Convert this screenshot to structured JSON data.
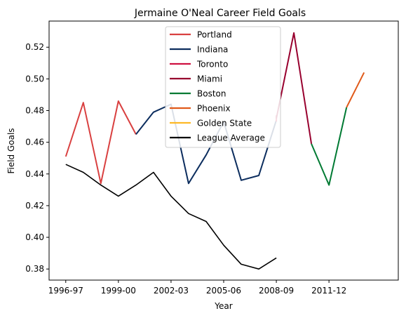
{
  "chart_data": {
    "type": "line",
    "title": "Jermaine O'Neal Career Field Goals",
    "xlabel": "Year",
    "ylabel": "Field Goals",
    "x_ticks": [
      "1996-97",
      "1999-00",
      "2002-03",
      "2005-06",
      "2008-09",
      "2011-12"
    ],
    "xlim": [
      -0.95,
      18.95
    ],
    "ylim": [
      0.373,
      0.5365
    ],
    "y_ticks": [
      0.38,
      0.4,
      0.42,
      0.44,
      0.46,
      0.48,
      0.5,
      0.52
    ],
    "grid": false,
    "legend_position": "top-center",
    "series": [
      {
        "name": "Portland",
        "color": "#d94040",
        "points": [
          [
            "1996-97",
            0.451
          ],
          [
            "1997-98",
            0.485
          ],
          [
            "1998-99",
            0.434
          ],
          [
            "1999-00",
            0.486
          ],
          [
            "2000-01",
            0.465
          ]
        ]
      },
      {
        "name": "Indiana",
        "color": "#0c2d5e",
        "points": [
          [
            "2000-01",
            0.465
          ],
          [
            "2001-02",
            0.479
          ],
          [
            "2002-03",
            0.484
          ],
          [
            "2003-04",
            0.434
          ],
          [
            "2004-05",
            0.452
          ],
          [
            "2005-06",
            0.473
          ],
          [
            "2006-07",
            0.436
          ],
          [
            "2007-08",
            0.439
          ],
          [
            "2008-09",
            0.474
          ]
        ]
      },
      {
        "name": "Toronto",
        "color": "#ce1141",
        "points": [
          [
            "2008-09",
            0.473
          ],
          [
            "2008-09",
            0.477
          ]
        ]
      },
      {
        "name": "Miami",
        "color": "#98002e",
        "points": [
          [
            "2008-09",
            0.475
          ],
          [
            "2009-10",
            0.529
          ],
          [
            "2010-11",
            0.459
          ]
        ]
      },
      {
        "name": "Boston",
        "color": "#007a33",
        "points": [
          [
            "2010-11",
            0.459
          ],
          [
            "2011-12",
            0.433
          ],
          [
            "2012-13",
            0.482
          ]
        ]
      },
      {
        "name": "Phoenix",
        "color": "#e05a1a",
        "points": [
          [
            "2012-13",
            0.482
          ],
          [
            "2013-14",
            0.504
          ]
        ]
      },
      {
        "name": "Golden State",
        "color": "#fdb927",
        "points": []
      },
      {
        "name": "League Average",
        "color": "#000000",
        "points": [
          [
            "1996-97",
            0.446
          ],
          [
            "1997-98",
            0.441
          ],
          [
            "1998-99",
            0.433
          ],
          [
            "1999-00",
            0.426
          ],
          [
            "2000-01",
            0.433
          ],
          [
            "2001-02",
            0.441
          ],
          [
            "2002-03",
            0.426
          ],
          [
            "2003-04",
            0.415
          ],
          [
            "2004-05",
            0.41
          ],
          [
            "2005-06",
            0.395
          ],
          [
            "2006-07",
            0.383
          ],
          [
            "2007-08",
            0.38
          ],
          [
            "2008-09",
            0.387
          ]
        ]
      }
    ]
  }
}
